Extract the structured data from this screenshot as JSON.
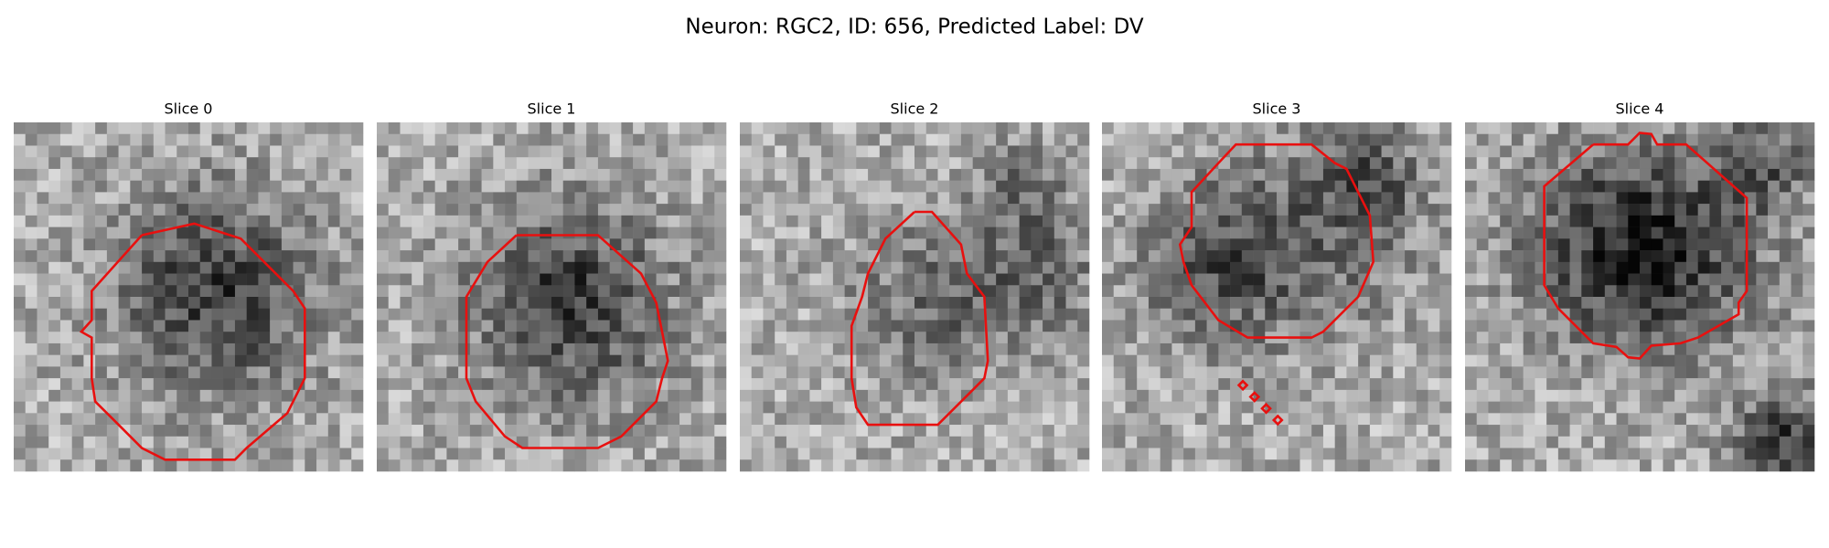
{
  "title": "Neuron: RGC2, ID: 656, Predicted Label: DV",
  "panels": [
    {
      "title": "Slice 0"
    },
    {
      "title": "Slice 1"
    },
    {
      "title": "Slice 2"
    },
    {
      "title": "Slice 3"
    },
    {
      "title": "Slice 4"
    }
  ]
}
